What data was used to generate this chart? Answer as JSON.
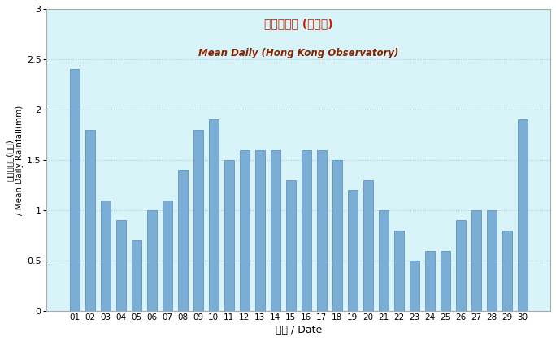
{
  "categories": [
    "01",
    "02",
    "03",
    "04",
    "05",
    "06",
    "07",
    "08",
    "09",
    "10",
    "11",
    "12",
    "13",
    "14",
    "15",
    "16",
    "17",
    "18",
    "19",
    "20",
    "21",
    "22",
    "23",
    "24",
    "25",
    "26",
    "27",
    "28",
    "29",
    "30"
  ],
  "values": [
    2.4,
    1.8,
    1.1,
    0.9,
    0.7,
    1.0,
    1.1,
    1.4,
    1.8,
    1.9,
    1.5,
    1.6,
    1.6,
    1.6,
    1.3,
    1.6,
    1.6,
    1.5,
    1.2,
    1.3,
    1.0,
    0.8,
    0.5,
    0.6,
    0.6,
    0.9,
    1.0,
    1.0,
    0.8,
    1.9
  ],
  "bar_color": "#7aaed4",
  "bar_edge_color": "#5588bb",
  "background_color": "#d8f4f8",
  "title_chinese": "平均日雨量 (天文台)",
  "title_english": "Mean Daily (Hong Kong Observatory)",
  "xlabel": "日期 / Date",
  "ylabel_chinese": "平均日雨量(毫米)",
  "ylabel_english": "/ Mean Daily Rainfall(mm)",
  "ylim": [
    0,
    3
  ],
  "yticks": [
    0,
    0.5,
    1.0,
    1.5,
    2.0,
    2.5,
    3.0
  ],
  "grid_color": "#aaccdd",
  "title_color_chinese": "#cc2200",
  "title_color_english": "#882200",
  "figsize": [
    6.84,
    4.2
  ],
  "dpi": 100
}
